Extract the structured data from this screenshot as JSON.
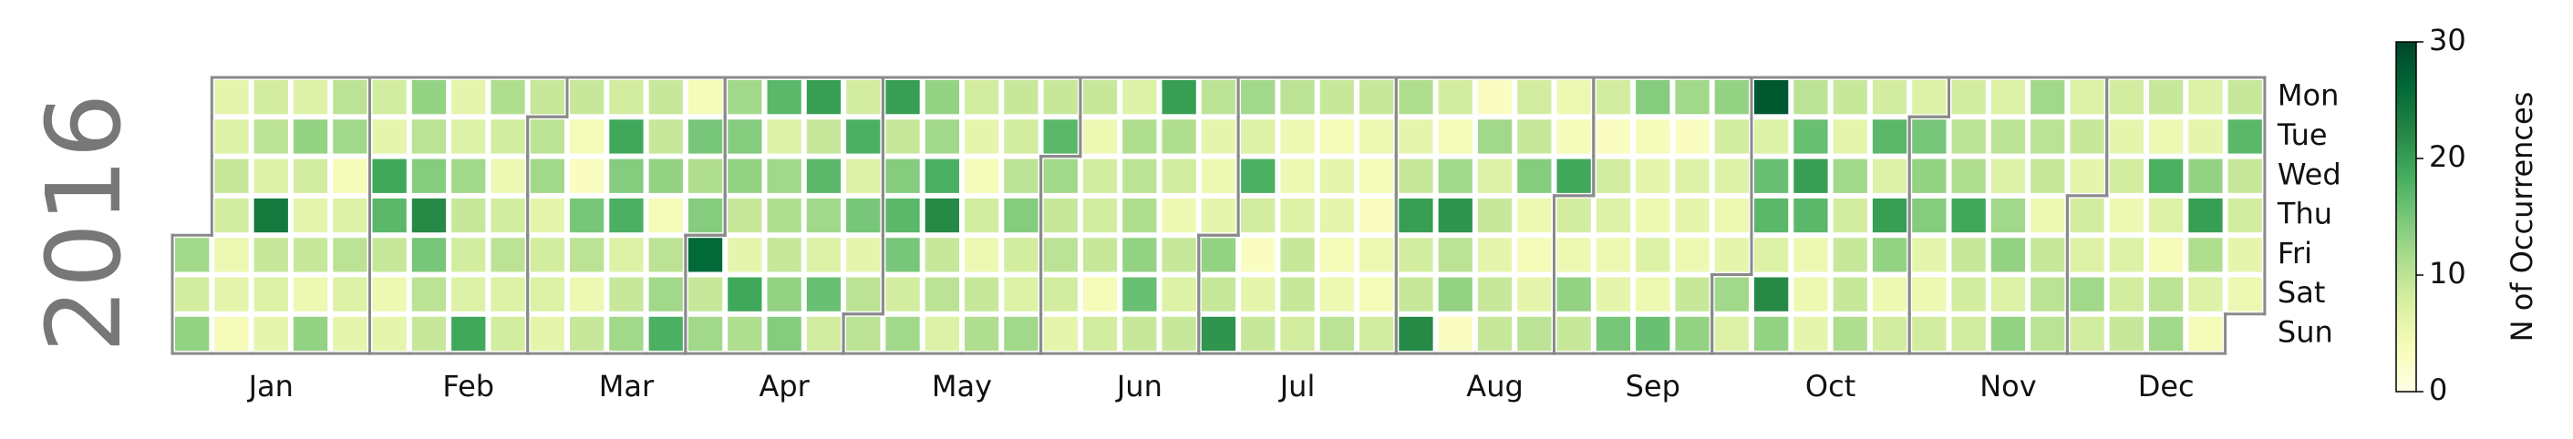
{
  "chart_data": {
    "type": "calendar_heatmap",
    "year": 2016,
    "cmap": "YlGn",
    "weekdays": [
      "Mon",
      "Tue",
      "Wed",
      "Thu",
      "Fri",
      "Sat",
      "Sun"
    ],
    "months": [
      "Jan",
      "Feb",
      "Mar",
      "Apr",
      "May",
      "Jun",
      "Jul",
      "Aug",
      "Sep",
      "Oct",
      "Nov",
      "Dec"
    ],
    "colorbar_label": "N of Occurrences",
    "clim": [
      0,
      30
    ],
    "cticks": [
      0,
      10,
      20,
      30
    ],
    "values": [
      12,
      8,
      13,
      6,
      7,
      9,
      8,
      5,
      6,
      4,
      8,
      10,
      7,
      24,
      9,
      7,
      6,
      7,
      13,
      8,
      6,
      9,
      5,
      13,
      10,
      12,
      4,
      7,
      10,
      7,
      6,
      8,
      6,
      19,
      17,
      9,
      5,
      6,
      13,
      10,
      14,
      22,
      15,
      10,
      9,
      6,
      7,
      12,
      9,
      8,
      7,
      19,
      11,
      8,
      5,
      8,
      10,
      7,
      8,
      9,
      10,
      12,
      6,
      8,
      7,
      6,
      9,
      4,
      3,
      15,
      10,
      5,
      9,
      8,
      19,
      14,
      18,
      7,
      9,
      12,
      9,
      9,
      13,
      4,
      10,
      12,
      18,
      4,
      15,
      11,
      14,
      26,
      9,
      12,
      12,
      14,
      13,
      9,
      6,
      19,
      11,
      17,
      7,
      12,
      11,
      9,
      13,
      14,
      20,
      9,
      17,
      12,
      7,
      16,
      8,
      8,
      18,
      7,
      15,
      6,
      10,
      10,
      20,
      9,
      14,
      17,
      15,
      8,
      12,
      13,
      12,
      18,
      22,
      9,
      10,
      7,
      8,
      6,
      4,
      8,
      5,
      9,
      11,
      9,
      8,
      10,
      14,
      8,
      7,
      12,
      9,
      17,
      12,
      9,
      10,
      8,
      6,
      9,
      5,
      8,
      8,
      9,
      4,
      8,
      7,
      11,
      10,
      11,
      13,
      16,
      9,
      20,
      11,
      8,
      5,
      9,
      7,
      9,
      10,
      6,
      5,
      6,
      13,
      9,
      21,
      12,
      7,
      18,
      8,
      3,
      6,
      9,
      10,
      5,
      5,
      7,
      9,
      9,
      8,
      9,
      4,
      6,
      6,
      4,
      5,
      10,
      9,
      5,
      4,
      3,
      5,
      4,
      8,
      11,
      6,
      9,
      20,
      8,
      9,
      22,
      8,
      4,
      12,
      21,
      10,
      13,
      3,
      3,
      12,
      7,
      9,
      6,
      9,
      9,
      8,
      9,
      14,
      5,
      4,
      6,
      10,
      5,
      4,
      19,
      8,
      5,
      13,
      9,
      8,
      3,
      8,
      7,
      5,
      6,
      15,
      14,
      4,
      6,
      5,
      7,
      5,
      16,
      12,
      3,
      7,
      6,
      5,
      9,
      13,
      13,
      8,
      7,
      5,
      6,
      12,
      7,
      28,
      7,
      16,
      17,
      7,
      22,
      13,
      10,
      16,
      20,
      17,
      5,
      5,
      6,
      9,
      6,
      12,
      8,
      9,
      9,
      11,
      8,
      17,
      7,
      20,
      13,
      5,
      8,
      7,
      15,
      13,
      14,
      6,
      5,
      8,
      8,
      10,
      11,
      19,
      9,
      8,
      8,
      7,
      10,
      7,
      12,
      13,
      7,
      13,
      12,
      10,
      9,
      5,
      9,
      10,
      10,
      7,
      9,
      6,
      8,
      7,
      12,
      8,
      8,
      6,
      8,
      5,
      7,
      8,
      9,
      9,
      5,
      18,
      7,
      4,
      10,
      12,
      7,
      6,
      13,
      20,
      11,
      7,
      4,
      9,
      17,
      9,
      8,
      6,
      5
    ]
  }
}
